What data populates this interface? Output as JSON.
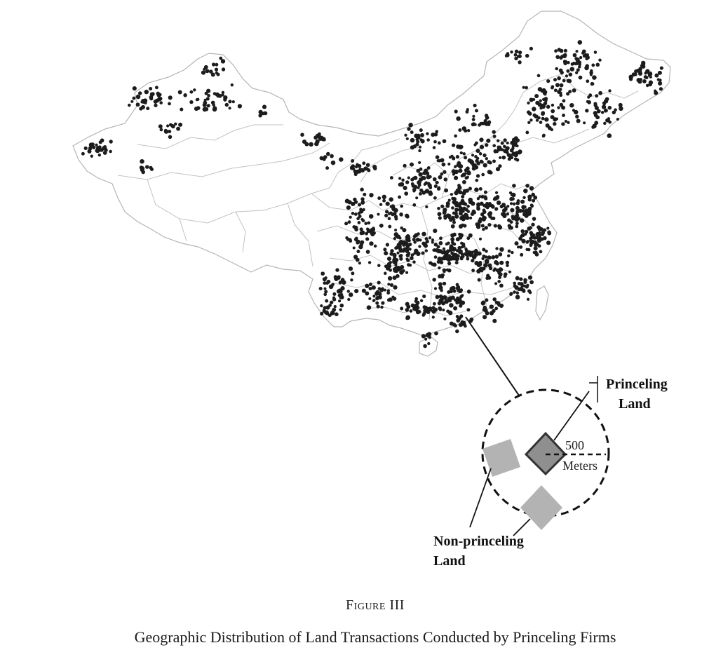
{
  "figure": {
    "number": "Figure III",
    "title": "Geographic Distribution of Land Transactions Conducted by Princeling Firms"
  },
  "inset": {
    "princeling_label_line1": "Princeling",
    "princeling_label_line2": "Land",
    "nonprinceling_label_line1": "Non-princeling",
    "nonprinceling_label_line2": "Land",
    "scale_value": "500",
    "scale_unit": "Meters"
  },
  "colors": {
    "map_border": "#b5b5b5",
    "transaction_dot": "#1c1c1c",
    "princeling_parcel": "#8f8f8f",
    "nonprinceling_parcel": "#b3b3b3"
  }
}
